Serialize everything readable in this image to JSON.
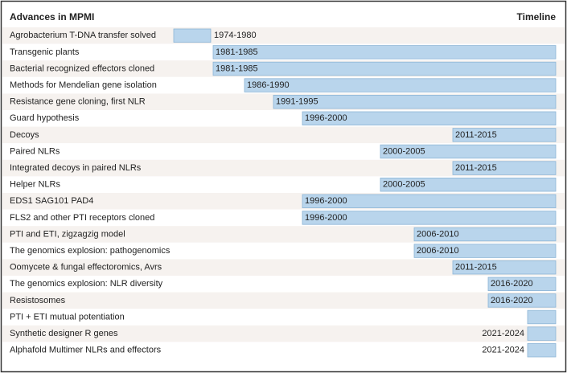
{
  "header": {
    "title": "Advances in MPMI",
    "timeline": "Timeline"
  },
  "rows": [
    {
      "label": "Agrobacterium T-DNA transfer solved",
      "period": "1974-1980"
    },
    {
      "label": "Transgenic plants",
      "period": "1981-1985"
    },
    {
      "label": "Bacterial recognized effectors cloned",
      "period": "1981-1985"
    },
    {
      "label": "Methods for Mendelian gene isolation",
      "period": "1986-1990"
    },
    {
      "label": "Resistance gene cloning, first NLR",
      "period": "1991-1995"
    },
    {
      "label": "Guard hypothesis",
      "period": "1996-2000"
    },
    {
      "label": "Decoys",
      "period": "2011-2015"
    },
    {
      "label": "Paired NLRs",
      "period": "2000-2005"
    },
    {
      "label": "Integrated decoys in paired NLRs",
      "period": "2011-2015"
    },
    {
      "label": "Helper NLRs",
      "period": "2000-2005"
    },
    {
      "label": "EDS1 SAG101 PAD4",
      "period": "1996-2000"
    },
    {
      "label": "FLS2 and other PTI receptors cloned",
      "period": "1996-2000"
    },
    {
      "label": "PTI and ETI, zigzagzig model",
      "period": "2006-2010"
    },
    {
      "label": "The genomics explosion: pathogenomics",
      "period": "2006-2010"
    },
    {
      "label": "Oomycete & fungal effectoromics, Avrs",
      "period": "2011-2015"
    },
    {
      "label": "The genomics explosion: NLR diversity",
      "period": "2016-2020"
    },
    {
      "label": "Resistosomes",
      "period": "2016-2020"
    },
    {
      "label": "PTI + ETI mutual potentiation",
      "period": null
    },
    {
      "label": "Synthetic designer R genes",
      "period": "2021-2024"
    },
    {
      "label": "Alphafold Multimer NLRs and effectors",
      "period": "2021-2024"
    }
  ]
}
